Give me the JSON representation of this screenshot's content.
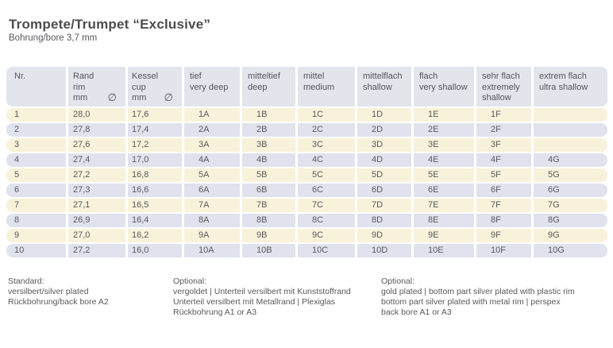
{
  "header": {
    "title": "Trompete/Trumpet “Exclusive”",
    "subtitle": "Bohrung/bore 3,7 mm"
  },
  "table": {
    "columns": [
      {
        "id": "nr",
        "lines": [
          "Nr."
        ]
      },
      {
        "id": "rand-rim-mm",
        "lines": [
          "Rand",
          "rim",
          "mm"
        ],
        "diameter_symbol": "∅"
      },
      {
        "id": "kessel-cup-mm",
        "lines": [
          "Kessel",
          "cup",
          "mm"
        ],
        "diameter_symbol": "∅"
      },
      {
        "id": "tief",
        "lines": [
          "tief",
          "very deep"
        ]
      },
      {
        "id": "mitteltief",
        "lines": [
          "mitteltief",
          "deep"
        ]
      },
      {
        "id": "mittel",
        "lines": [
          "mittel",
          "medium"
        ]
      },
      {
        "id": "mittelflach",
        "lines": [
          "mittelflach",
          "shallow"
        ]
      },
      {
        "id": "flach",
        "lines": [
          "flach",
          "very shallow"
        ]
      },
      {
        "id": "sehr-flach",
        "lines": [
          "sehr flach",
          "extremely",
          "shallow"
        ]
      },
      {
        "id": "extrem-flach",
        "lines": [
          "extrem flach",
          "ultra shallow"
        ]
      }
    ],
    "rows": [
      [
        "1",
        "28,0",
        "17,6",
        "1A",
        "1B",
        "1C",
        "1D",
        "1E",
        "1F",
        ""
      ],
      [
        "2",
        "27,8",
        "17,4",
        "2A",
        "2B",
        "2C",
        "2D",
        "2E",
        "2F",
        ""
      ],
      [
        "3",
        "27,6",
        "17,2",
        "3A",
        "3B",
        "3C",
        "3D",
        "3E",
        "3F",
        ""
      ],
      [
        "4",
        "27,4",
        "17,0",
        "4A",
        "4B",
        "4C",
        "4D",
        "4E",
        "4F",
        "4G"
      ],
      [
        "5",
        "27,2",
        "16,8",
        "5A",
        "5B",
        "5C",
        "5D",
        "5E",
        "5F",
        "5G"
      ],
      [
        "6",
        "27,3",
        "16,6",
        "6A",
        "6B",
        "6C",
        "6D",
        "6E",
        "6F",
        "6G"
      ],
      [
        "7",
        "27,1",
        "16,5",
        "7A",
        "7B",
        "7C",
        "7D",
        "7E",
        "7F",
        "7G"
      ],
      [
        "8",
        "26,9",
        "16,4",
        "8A",
        "8B",
        "8C",
        "8D",
        "8E",
        "8F",
        "8G"
      ],
      [
        "9",
        "27,0",
        "16,2",
        "9A",
        "9B",
        "9C",
        "9D",
        "9E",
        "9F",
        "9G"
      ],
      [
        "10",
        "27,2",
        "16,0",
        "10A",
        "10B",
        "10C",
        "10D",
        "10E",
        "10F",
        "10G"
      ]
    ]
  },
  "footnotes": [
    {
      "lines": [
        "Standard:",
        "versilbert/silver plated",
        "Rückbohrung/back bore A2"
      ]
    },
    {
      "lines": [
        "Optional:",
        "vergoldet | Unterteil versilbert mit Kunststoffrand",
        "Unterteil versilbert mit Metallrand | Plexiglas",
        "Rückbohrung A1 or A3"
      ]
    },
    {
      "lines": [
        "Optional:",
        "gold plated | bottom part silver plated with plastic rim",
        "bottom part silver plated with metal rim | perspex",
        "back bore A1 or A3"
      ]
    }
  ],
  "colors": {
    "header_bg": "#e3e5ec",
    "row_beige": "#f8f2da",
    "row_blue": "#e0e3ed",
    "text": "#58595c",
    "title": "#4b4c4e"
  }
}
